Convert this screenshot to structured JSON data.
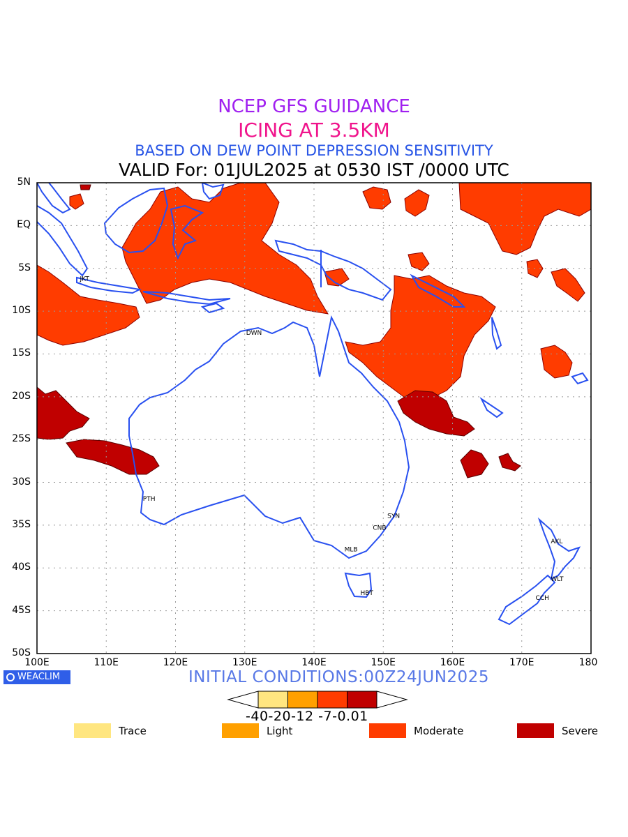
{
  "header": {
    "line1": "NCEP GFS GUIDANCE",
    "line2": "ICING AT 3.5KM",
    "line3": "BASED ON DEW POINT DEPRESSION SENSITIVITY",
    "line4": "VALID For: 01JUL2025 at 0530 IST /0000 UTC"
  },
  "axes": {
    "lat_labels": [
      "5N",
      "EQ",
      "5S",
      "10S",
      "15S",
      "20S",
      "25S",
      "30S",
      "35S",
      "40S",
      "45S",
      "50S"
    ],
    "lon_labels": [
      "100E",
      "110E",
      "120E",
      "130E",
      "140E",
      "150E",
      "160E",
      "170E",
      "180"
    ],
    "lat_range": [
      -50,
      5
    ],
    "lon_range": [
      100,
      180
    ],
    "grid": "dotted"
  },
  "cities": [
    {
      "code": "JKT",
      "lon": 106.8,
      "lat": -6.2
    },
    {
      "code": "DWN",
      "lon": 130.8,
      "lat": -12.5
    },
    {
      "code": "PTH",
      "lon": 115.9,
      "lat": -31.9
    },
    {
      "code": "SYN",
      "lon": 151.2,
      "lat": -33.9
    },
    {
      "code": "CNB",
      "lon": 149.1,
      "lat": -35.3
    },
    {
      "code": "MLB",
      "lon": 145.0,
      "lat": -37.8
    },
    {
      "code": "HBT",
      "lon": 147.3,
      "lat": -42.9
    },
    {
      "code": "AKL",
      "lon": 174.8,
      "lat": -36.9
    },
    {
      "code": "WLT",
      "lon": 174.8,
      "lat": -41.3
    },
    {
      "code": "CCH",
      "lon": 172.6,
      "lat": -43.5
    }
  ],
  "branding": {
    "logo_text": "WEACLIM"
  },
  "footer": {
    "initial_conditions": "INITIAL CONDITIONS:00Z24JUN2025"
  },
  "colorbar": {
    "tick_text": "-40-20-12 -7-0.01",
    "colors": [
      "#ffe680",
      "#ffa000",
      "#ff3c00",
      "#c00000"
    ]
  },
  "legend": [
    {
      "label": "Trace",
      "color": "#ffe680"
    },
    {
      "label": "Light",
      "color": "#ffa000"
    },
    {
      "label": "Moderate",
      "color": "#ff3c00"
    },
    {
      "label": "Severe",
      "color": "#c00000"
    }
  ],
  "colors": {
    "coast": "#2850f0",
    "title1": "#a020f0",
    "title2": "#f0148c",
    "title3": "#2855e6"
  }
}
